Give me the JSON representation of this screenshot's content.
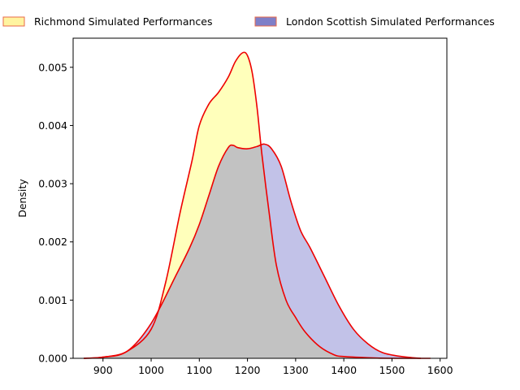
{
  "chart_data": {
    "type": "area",
    "title": "",
    "xlabel": "",
    "ylabel": "Density",
    "xlim": [
      838,
      1614
    ],
    "ylim": [
      0,
      0.0055
    ],
    "x_ticks": [
      900,
      1000,
      1100,
      1200,
      1300,
      1400,
      1500,
      1600
    ],
    "y_ticks": [
      0,
      0.001,
      0.002,
      0.003,
      0.004,
      0.005
    ],
    "y_tick_labels": [
      "0.000",
      "0.001",
      "0.002",
      "0.003",
      "0.004",
      "0.005"
    ],
    "legend_position": "top",
    "grid": false,
    "line_color": "#ee0000",
    "series": [
      {
        "name": "Richmond Simulated Performances",
        "fill": "#ffffaa",
        "fill_opacity": 0.8,
        "x": [
          860,
          900,
          950,
          1000,
          1030,
          1060,
          1085,
          1100,
          1120,
          1140,
          1160,
          1175,
          1190,
          1200,
          1210,
          1220,
          1230,
          1245,
          1260,
          1280,
          1300,
          1320,
          1350,
          1380,
          1400,
          1450,
          1500,
          1560
        ],
        "y": [
          0.0,
          2e-05,
          0.00012,
          0.0005,
          0.0013,
          0.0025,
          0.0034,
          0.004,
          0.00437,
          0.00457,
          0.00483,
          0.0051,
          0.00525,
          0.0052,
          0.0049,
          0.0043,
          0.0035,
          0.0025,
          0.0016,
          0.001,
          0.0007,
          0.00045,
          0.0002,
          6e-05,
          3e-05,
          1e-05,
          0.0,
          0.0
        ]
      },
      {
        "name": "London Scottish Simulated Performances",
        "fill": "#7777cc",
        "fill_opacity": 0.45,
        "x": [
          860,
          900,
          950,
          1000,
          1050,
          1080,
          1100,
          1120,
          1140,
          1160,
          1170,
          1180,
          1200,
          1220,
          1235,
          1250,
          1270,
          1290,
          1310,
          1330,
          1360,
          1390,
          1420,
          1450,
          1480,
          1520,
          1560,
          1580
        ],
        "y": [
          0.0,
          2e-05,
          0.00012,
          0.0006,
          0.0014,
          0.0019,
          0.0023,
          0.0028,
          0.0033,
          0.00362,
          0.00366,
          0.00362,
          0.0036,
          0.00364,
          0.00368,
          0.0036,
          0.0033,
          0.0027,
          0.0022,
          0.0019,
          0.0014,
          0.0009,
          0.0005,
          0.00025,
          0.0001,
          3e-05,
          0.0,
          0.0
        ]
      }
    ]
  }
}
